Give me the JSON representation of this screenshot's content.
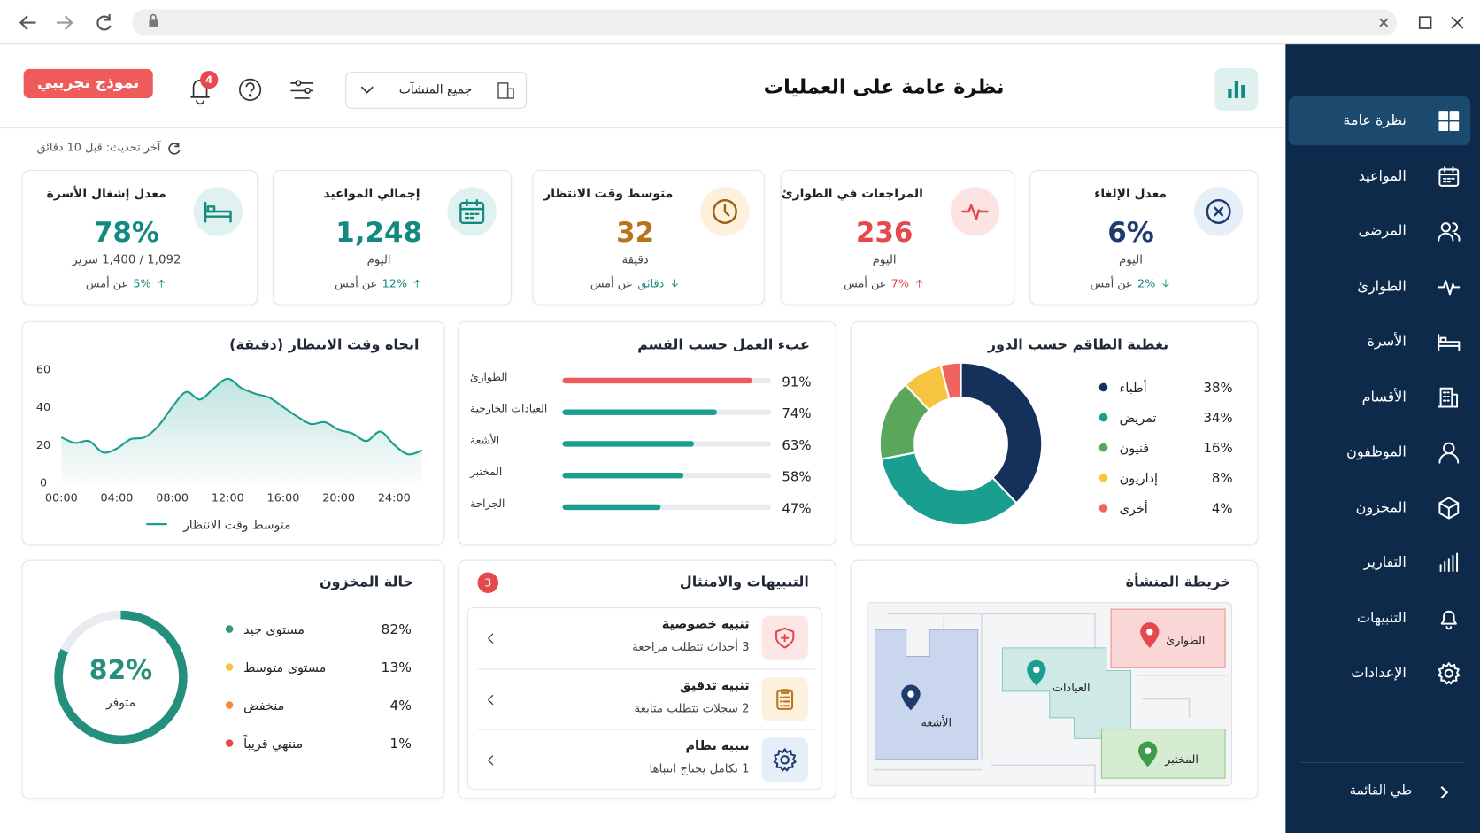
{
  "header": {
    "title": "نظرة عامة على العمليات",
    "facility": "جميع المنشآت",
    "notifications": 4,
    "demo_badge": "نموذج تجريبي"
  },
  "last_update": "آخر تحديث: قبل 10 دقائق",
  "sidebar": {
    "items": [
      "نظرة عامة",
      "المواعيد",
      "المرضى",
      "الطوارئ",
      "الأسرة",
      "الأقسام",
      "الموظفون",
      "المخزون",
      "التقارير",
      "التنبيهات",
      "الإعدادات"
    ],
    "active": 0,
    "collapse": "طي القائمة"
  },
  "kpis": [
    {
      "title": "معدل الإلغاء",
      "value": "6%",
      "note": "اليوم",
      "change": "2%",
      "change_text": "عن أمس",
      "trend": "down",
      "color": "#1e3a6e",
      "change_color": "#138a80"
    },
    {
      "title": "المراجعات في الطوارئ",
      "value": "236",
      "note": "اليوم",
      "change": "7%",
      "change_text": "عن أمس",
      "trend": "up",
      "color": "#e5484d",
      "change_color": "#e5484d"
    },
    {
      "title": "متوسط وقت الانتظار",
      "value": "32",
      "note": "دقيقة",
      "change": "دقائق",
      "change_text": "عن أمس",
      "trend": "down",
      "color": "#b8741a",
      "change_color": "#138a80"
    },
    {
      "title": "إجمالي المواعيد",
      "value": "1,248",
      "note": "اليوم",
      "change": "12%",
      "change_text": "عن أمس",
      "trend": "up",
      "color": "#138a80",
      "change_color": "#138a80"
    },
    {
      "title": "معدل إشغال الأسرة",
      "value": "78%",
      "note": "1,092 / 1,400 سرير",
      "change": "5%",
      "change_text": "عن أمس",
      "trend": "up",
      "color": "#138a80",
      "change_color": "#138a80"
    }
  ],
  "chart_data": [
    {
      "type": "line",
      "title": "اتجاه وقت الانتظار (دقيقة)",
      "x": [
        0,
        1,
        2,
        3,
        4,
        5,
        6,
        7,
        8,
        9,
        10,
        11,
        12,
        13,
        14,
        15,
        16,
        17,
        18,
        19,
        20,
        21,
        22,
        23,
        24,
        25,
        26
      ],
      "xlim": [
        0,
        26
      ],
      "xticks": [
        {
          "value": 0,
          "label": "00:00"
        },
        {
          "value": 4,
          "label": "04:00"
        },
        {
          "value": 8,
          "label": "08:00"
        },
        {
          "value": 12,
          "label": "12:00"
        },
        {
          "value": 16,
          "label": "16:00"
        },
        {
          "value": 20,
          "label": "20:00"
        },
        {
          "value": 24,
          "label": "24:00"
        }
      ],
      "ylim": [
        0,
        60
      ],
      "yticks": [
        0,
        20,
        40,
        60
      ],
      "grid": false,
      "series": [
        {
          "name": "متوسط وقت الانتظار",
          "color": "#1a9e8f",
          "values": [
            24,
            21,
            22,
            16,
            18,
            23,
            24,
            30,
            40,
            48,
            44,
            50,
            55,
            50,
            47,
            45,
            40,
            35,
            31,
            32,
            28,
            26,
            22,
            27,
            20,
            15,
            17
          ]
        }
      ]
    },
    {
      "type": "bar",
      "orientation": "horizontal",
      "title": "عبء العمل حسب القسم",
      "categories": [
        "الطوارئ",
        "العيادات الخارجية",
        "الأشعة",
        "المختبر",
        "الجراحة"
      ],
      "values": [
        91,
        74,
        63,
        58,
        47
      ],
      "value_labels": [
        "91%",
        "74%",
        "63%",
        "58%",
        "47%"
      ],
      "colors": [
        "#ef5b5b",
        "#1a9e8f",
        "#1a9e8f",
        "#1a9e8f",
        "#1a9e8f"
      ],
      "xlim": [
        0,
        100
      ]
    },
    {
      "type": "donut",
      "title": "تغطية الطاقم حسب الدور",
      "categories": [
        "أطباء",
        "تمريض",
        "فنيون",
        "إداريون",
        "أخرى"
      ],
      "values": [
        38,
        34,
        16,
        8,
        4
      ],
      "value_labels": [
        "38%",
        "34%",
        "16%",
        "8%",
        "4%"
      ],
      "colors": [
        "#14315c",
        "#1a9e8f",
        "#5aa65a",
        "#f5c542",
        "#ef6461"
      ]
    },
    {
      "type": "ring",
      "title": "حالة المخزون",
      "categories": [
        "مستوى جيد",
        "مستوى متوسط",
        "منخفض",
        "منتهي قريباً"
      ],
      "values": [
        82,
        13,
        4,
        1
      ],
      "value_labels": [
        "82%",
        "13%",
        "4%",
        "1%"
      ],
      "colors": [
        "#2e9e6a",
        "#f5c542",
        "#f08a3c",
        "#e5484d"
      ],
      "ring_color": "#238f7c",
      "track_color": "#e8ebef",
      "center_label": "متوفر"
    }
  ],
  "alerts": {
    "title": "التنبيهات والامتثال",
    "count": 3,
    "items": [
      {
        "title": "تنبيه خصوصية",
        "detail": "3 أحداث تتطلب مراجعة"
      },
      {
        "title": "تنبيه تدقيق",
        "detail": "2 سجلات تتطلب متابعة"
      },
      {
        "title": "تنبيه نظام",
        "detail": "1 تكامل يحتاج انتباها"
      }
    ]
  },
  "facility_map": {
    "title": "خريطة المنشأة",
    "areas": [
      "الطوارئ",
      "العيادات",
      "الأشعة",
      "المختبر"
    ]
  }
}
